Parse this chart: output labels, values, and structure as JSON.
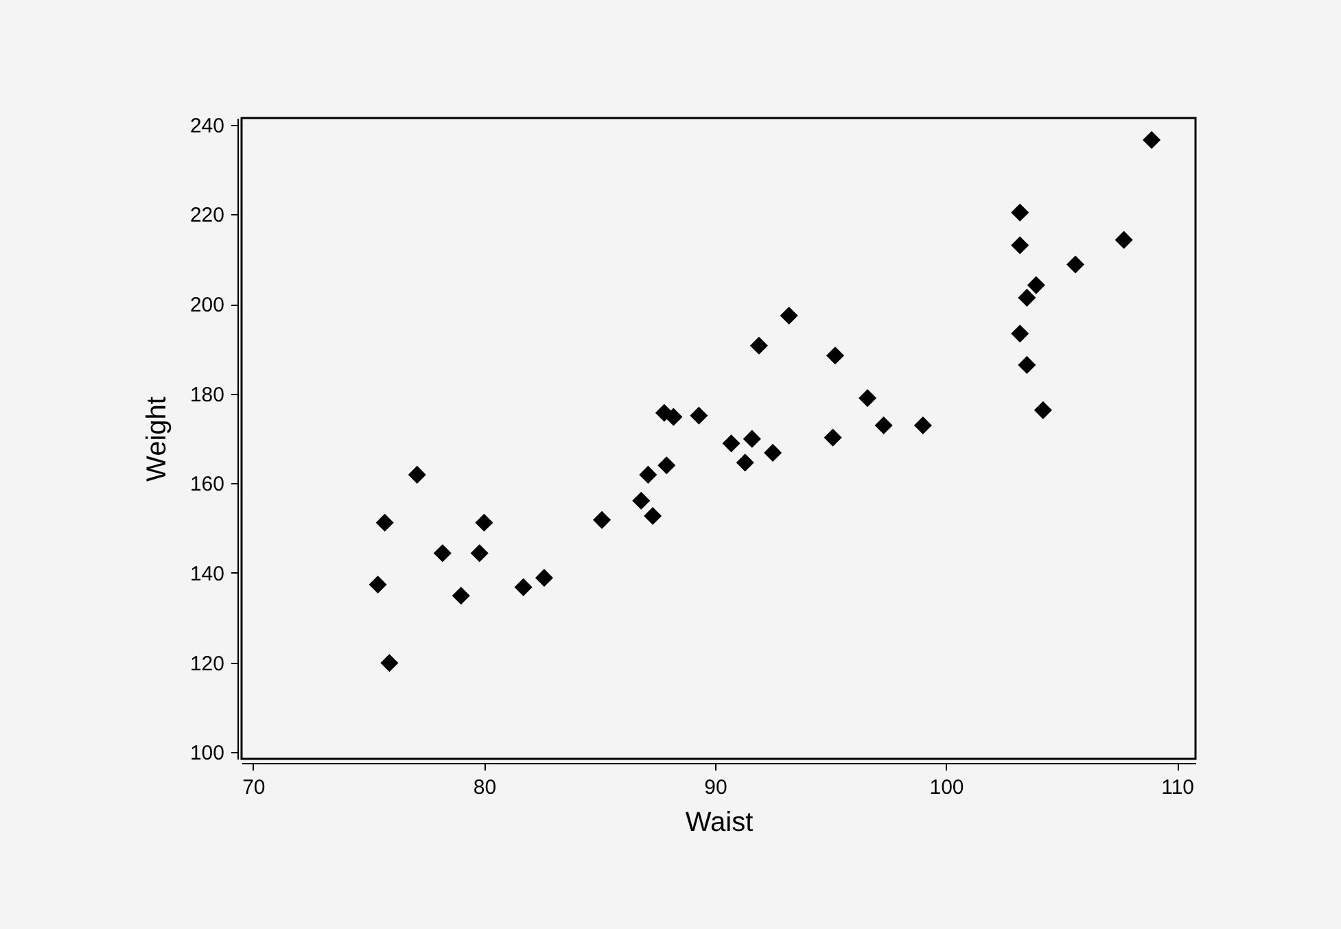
{
  "chart_data": {
    "type": "scatter",
    "xlabel": "Waist",
    "ylabel": "Weight",
    "color": "#000000",
    "marker": "diamond",
    "grid": false,
    "xlim": [
      69.5,
      110.8
    ],
    "ylim": [
      98.5,
      241.5
    ],
    "xticks": [
      70,
      80,
      90,
      100,
      110
    ],
    "yticks": [
      100,
      120,
      140,
      160,
      180,
      200,
      220,
      240
    ],
    "x": [
      75.4,
      75.7,
      75.9,
      77.1,
      78.2,
      79.0,
      79.8,
      80.0,
      81.7,
      82.6,
      85.1,
      86.8,
      87.1,
      87.3,
      87.9,
      87.8,
      88.2,
      89.3,
      90.7,
      91.6,
      91.3,
      92.5,
      91.9,
      93.2,
      95.1,
      95.2,
      96.6,
      97.3,
      99.0,
      103.2,
      103.2,
      103.9,
      103.5,
      103.2,
      103.5,
      104.2,
      105.6,
      107.7,
      108.9
    ],
    "values": [
      137.4,
      151.2,
      119.9,
      161.9,
      144.4,
      134.9,
      144.4,
      151.2,
      136.8,
      138.9,
      151.8,
      156.1,
      161.9,
      152.7,
      164.0,
      175.7,
      174.8,
      175.1,
      168.9,
      169.9,
      164.6,
      166.8,
      190.7,
      197.4,
      170.2,
      188.5,
      179.0,
      172.9,
      172.9,
      220.4,
      213.1,
      204.2,
      201.4,
      193.4,
      186.4,
      176.3,
      208.8,
      214.3,
      236.6
    ]
  }
}
